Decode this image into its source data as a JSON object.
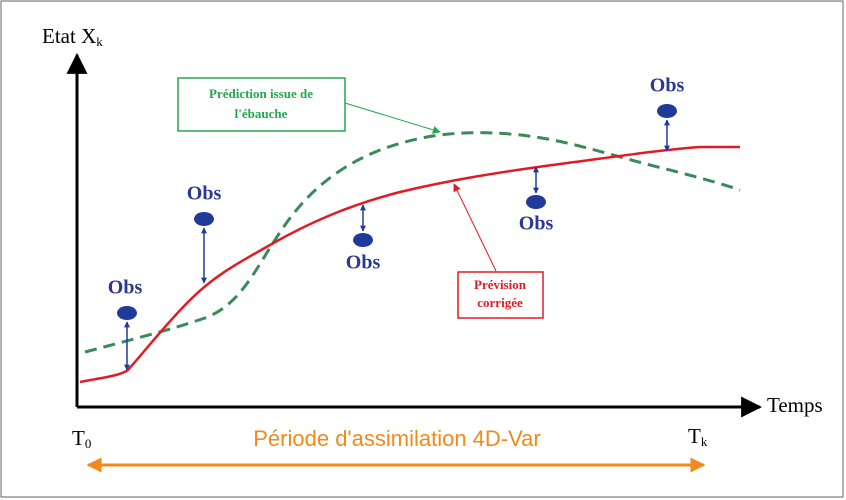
{
  "y_axis": {
    "label": "Etat",
    "symbol": "X",
    "subscript": "k"
  },
  "x_axis": {
    "label": "Temps"
  },
  "period": {
    "label": "Période d'assimilation 4D-Var",
    "start": {
      "symbol": "T",
      "subscript": "0"
    },
    "end": {
      "symbol": "T",
      "subscript": "k"
    }
  },
  "observations": [
    "Obs",
    "Obs",
    "Obs",
    "Obs",
    "Obs"
  ],
  "callouts": {
    "background": {
      "lines": [
        "Prédiction issue de",
        "l'ébauche"
      ]
    },
    "corrected": {
      "lines": [
        "Prévision",
        "corrigée"
      ]
    }
  }
}
